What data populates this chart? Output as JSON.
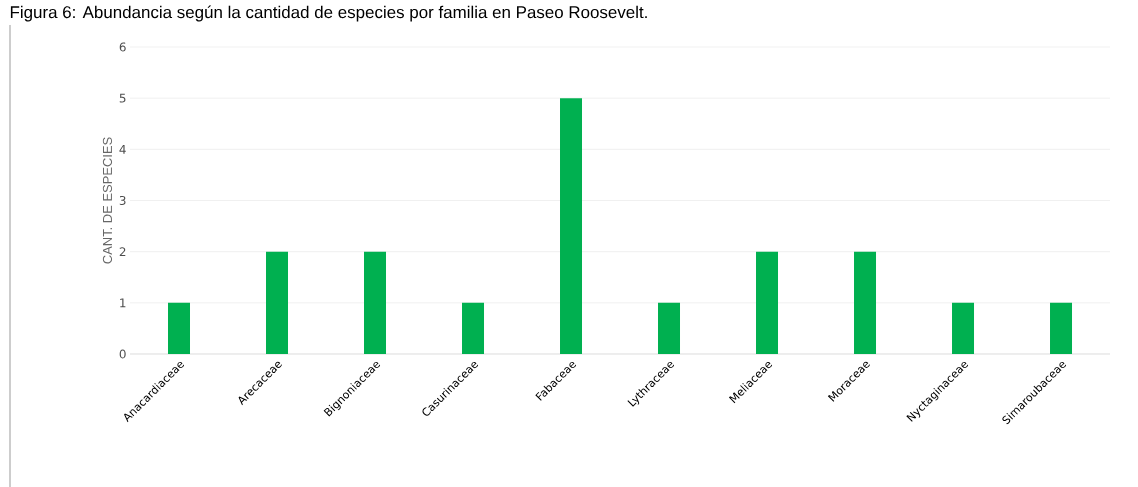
{
  "chart_data": {
    "type": "bar",
    "title": "Figura 6: Abundancia según la cantidad de especies por familia en Paseo Roosevelt.",
    "ylabel": "CANT. DE ESPECIES",
    "categories": [
      "Anacardiaceae",
      "Arecaceae",
      "Bignoniaceae",
      "Casurinaceae",
      "Fabaceae",
      "Lythraceae",
      "Meliaceae",
      "Moraceae",
      "Nyctaginaceae",
      "Simaroubaceae"
    ],
    "values": [
      1,
      2,
      2,
      1,
      5,
      1,
      2,
      2,
      1,
      1
    ],
    "color": "#00b050",
    "ylim": [
      0,
      6
    ],
    "yticks": [
      0,
      1,
      2,
      3,
      4,
      5,
      6
    ],
    "grid": "y"
  }
}
